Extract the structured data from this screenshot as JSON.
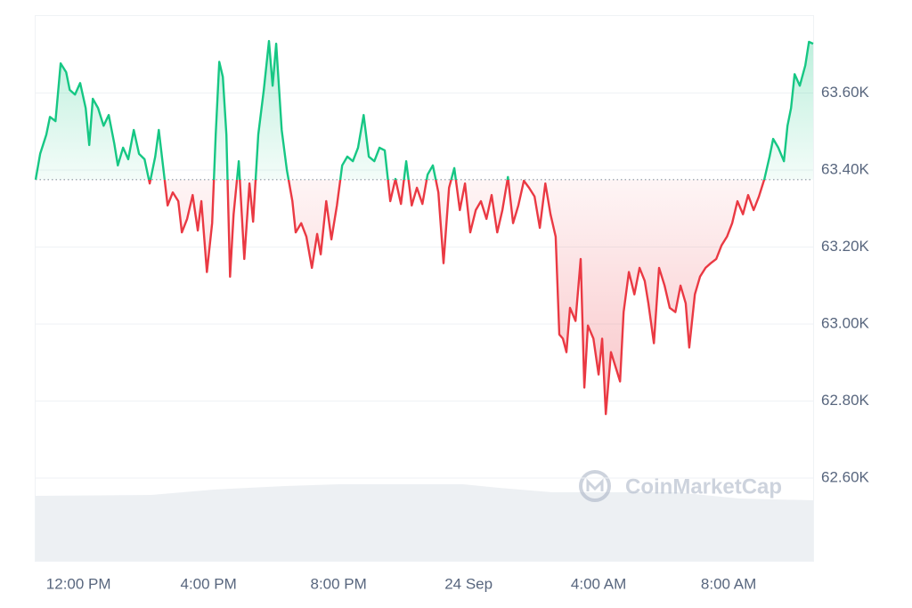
{
  "chart_data": {
    "type": "line",
    "watermark": "CoinMarketCap",
    "color_up": "#16c784",
    "color_down": "#ea3943",
    "grid": true,
    "xlim": [
      -1.32,
      22.6
    ],
    "ylim": [
      62385,
      63800
    ],
    "xticks": [
      {
        "value": 0,
        "label": "12:00 PM"
      },
      {
        "value": 4,
        "label": "4:00 PM"
      },
      {
        "value": 8,
        "label": "8:00 PM"
      },
      {
        "value": 12,
        "label": "24 Sep"
      },
      {
        "value": 16,
        "label": "4:00 AM"
      },
      {
        "value": 20,
        "label": "8:00 AM"
      }
    ],
    "yticks": [
      {
        "value": 62600,
        "label": "62.60K"
      },
      {
        "value": 62800,
        "label": "62.80K"
      },
      {
        "value": 63000,
        "label": "63.00K"
      },
      {
        "value": 63200,
        "label": "63.20K"
      },
      {
        "value": 63400,
        "label": "63.40K"
      },
      {
        "value": 63600,
        "label": "63.60K"
      }
    ],
    "x": [
      -1.32,
      -1.18,
      -0.99,
      -0.88,
      -0.71,
      -0.55,
      -0.38,
      -0.27,
      -0.11,
      0.05,
      0.22,
      0.33,
      0.44,
      0.6,
      0.77,
      0.93,
      1.1,
      1.21,
      1.37,
      1.53,
      1.7,
      1.86,
      2.03,
      2.19,
      2.36,
      2.47,
      2.63,
      2.74,
      2.9,
      3.07,
      3.18,
      3.34,
      3.51,
      3.67,
      3.78,
      3.95,
      4.11,
      4.22,
      4.33,
      4.44,
      4.55,
      4.66,
      4.77,
      4.93,
      5.1,
      5.26,
      5.37,
      5.53,
      5.7,
      5.86,
      5.97,
      6.08,
      6.25,
      6.41,
      6.58,
      6.68,
      6.85,
      7.01,
      7.18,
      7.34,
      7.45,
      7.62,
      7.78,
      7.95,
      8.11,
      8.27,
      8.44,
      8.6,
      8.77,
      8.93,
      9.1,
      9.26,
      9.42,
      9.59,
      9.75,
      9.92,
      10.08,
      10.25,
      10.41,
      10.58,
      10.74,
      10.9,
      11.07,
      11.23,
      11.4,
      11.56,
      11.73,
      11.89,
      12.05,
      12.22,
      12.38,
      12.55,
      12.71,
      12.88,
      13.04,
      13.21,
      13.37,
      13.53,
      13.7,
      13.86,
      14.03,
      14.19,
      14.36,
      14.52,
      14.68,
      14.79,
      14.9,
      15.01,
      15.12,
      15.29,
      15.45,
      15.56,
      15.67,
      15.84,
      16.0,
      16.11,
      16.22,
      16.38,
      16.55,
      16.66,
      16.77,
      16.93,
      17.1,
      17.26,
      17.42,
      17.53,
      17.7,
      17.86,
      18.03,
      18.19,
      18.36,
      18.52,
      18.68,
      18.79,
      18.96,
      19.12,
      19.29,
      19.45,
      19.62,
      19.78,
      19.95,
      20.11,
      20.27,
      20.44,
      20.6,
      20.77,
      20.93,
      21.1,
      21.26,
      21.37,
      21.53,
      21.7,
      21.81,
      21.92,
      22.03,
      22.19,
      22.36,
      22.47,
      22.6
    ],
    "values": [
      63375,
      63442,
      63492,
      63538,
      63527,
      63677,
      63654,
      63608,
      63596,
      63626,
      63561,
      63465,
      63585,
      63561,
      63515,
      63543,
      63469,
      63412,
      63458,
      63428,
      63504,
      63442,
      63428,
      63365,
      63435,
      63504,
      63388,
      63308,
      63342,
      63319,
      63238,
      63273,
      63335,
      63243,
      63319,
      63135,
      63262,
      63492,
      63681,
      63642,
      63492,
      63123,
      63285,
      63423,
      63169,
      63365,
      63266,
      63492,
      63608,
      63735,
      63619,
      63728,
      63504,
      63400,
      63319,
      63238,
      63262,
      63227,
      63146,
      63234,
      63181,
      63319,
      63220,
      63308,
      63412,
      63435,
      63423,
      63458,
      63543,
      63435,
      63423,
      63458,
      63451,
      63319,
      63377,
      63312,
      63423,
      63308,
      63354,
      63312,
      63388,
      63412,
      63342,
      63158,
      63354,
      63405,
      63296,
      63365,
      63238,
      63296,
      63319,
      63273,
      63335,
      63238,
      63296,
      63382,
      63262,
      63308,
      63372,
      63354,
      63331,
      63250,
      63365,
      63285,
      63227,
      62973,
      62962,
      62927,
      63042,
      63008,
      63169,
      62835,
      62996,
      62962,
      62869,
      62962,
      62766,
      62927,
      62881,
      62851,
      63031,
      63135,
      63077,
      63146,
      63112,
      63054,
      62950,
      63146,
      63100,
      63042,
      63031,
      63100,
      63054,
      62939,
      63077,
      63123,
      63146,
      63158,
      63169,
      63204,
      63227,
      63262,
      63319,
      63285,
      63335,
      63296,
      63331,
      63377,
      63435,
      63481,
      63458,
      63423,
      63515,
      63561,
      63649,
      63619,
      63672,
      63733,
      63728
    ]
  }
}
